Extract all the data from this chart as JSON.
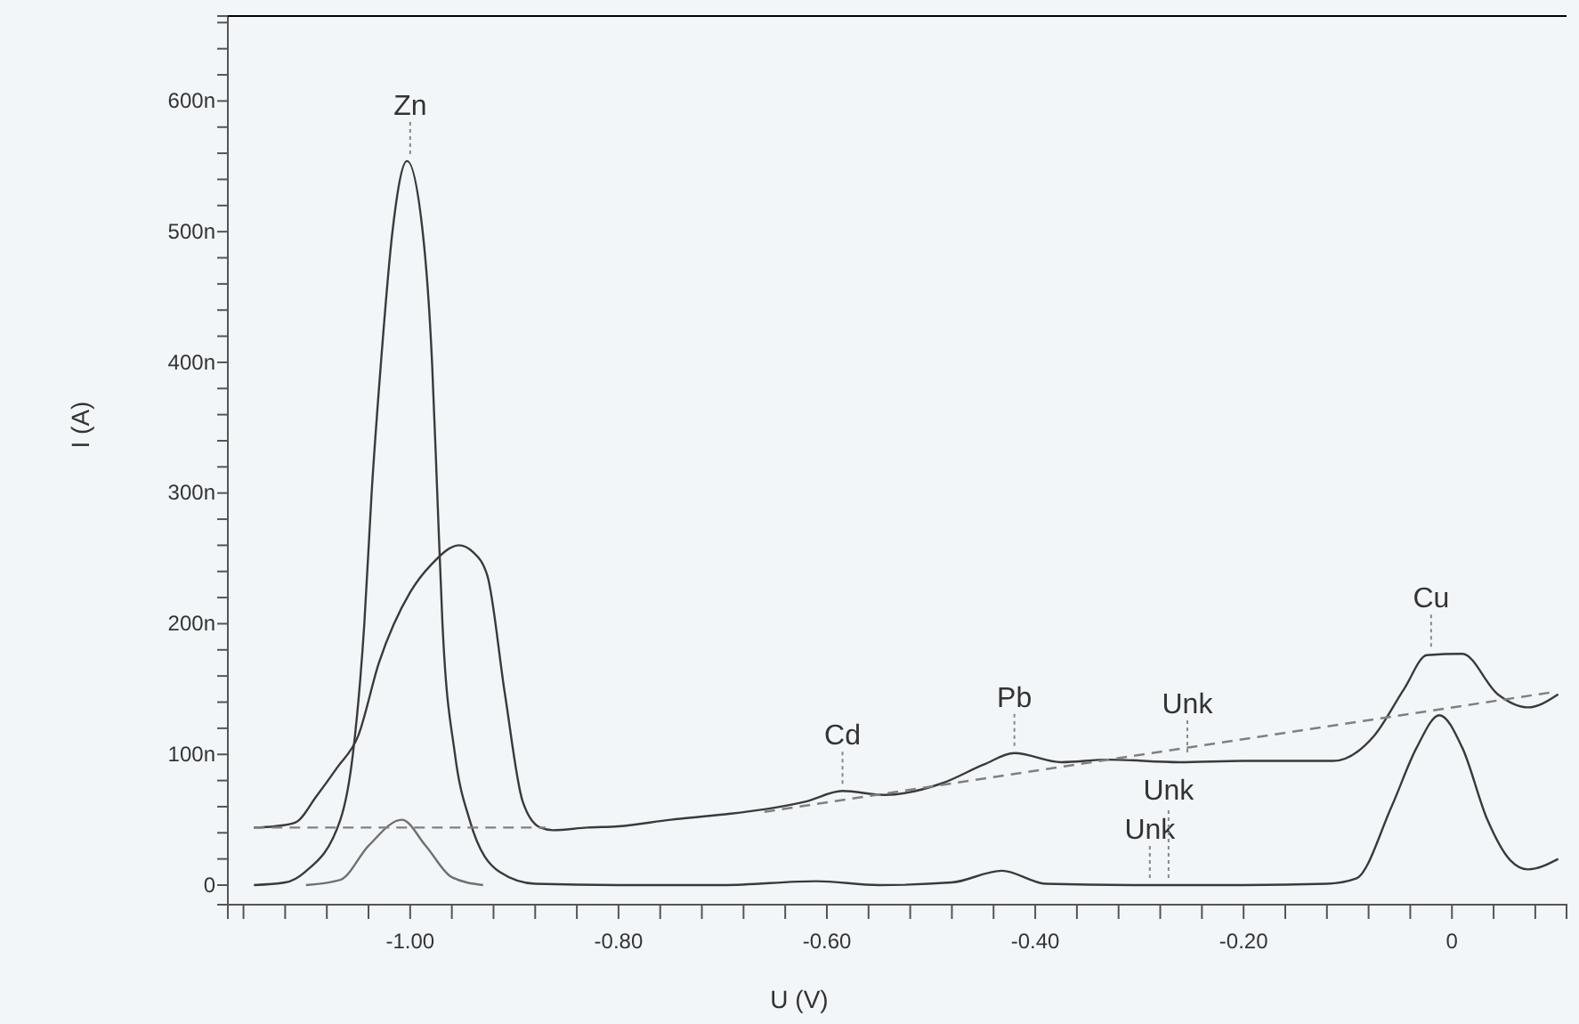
{
  "chart_data": {
    "type": "line",
    "xlabel": "U (V)",
    "ylabel": "I (A)",
    "xlim": [
      -1.175,
      0.11
    ],
    "ylim": [
      -15,
      665
    ],
    "xticks": [
      {
        "value": -1.16,
        "label": null
      },
      {
        "value": -1.12,
        "label": null
      },
      {
        "value": -1.08,
        "label": null
      },
      {
        "value": -1.04,
        "label": null
      },
      {
        "value": -1.0,
        "label": "-1.00"
      },
      {
        "value": -0.96,
        "label": null
      },
      {
        "value": -0.92,
        "label": null
      },
      {
        "value": -0.88,
        "label": null
      },
      {
        "value": -0.84,
        "label": null
      },
      {
        "value": -0.8,
        "label": "-0.80"
      },
      {
        "value": -0.76,
        "label": null
      },
      {
        "value": -0.72,
        "label": null
      },
      {
        "value": -0.68,
        "label": null
      },
      {
        "value": -0.64,
        "label": null
      },
      {
        "value": -0.6,
        "label": "-0.60"
      },
      {
        "value": -0.56,
        "label": null
      },
      {
        "value": -0.52,
        "label": null
      },
      {
        "value": -0.48,
        "label": null
      },
      {
        "value": -0.44,
        "label": null
      },
      {
        "value": -0.4,
        "label": "-0.40"
      },
      {
        "value": -0.36,
        "label": null
      },
      {
        "value": -0.32,
        "label": null
      },
      {
        "value": -0.28,
        "label": null
      },
      {
        "value": -0.24,
        "label": null
      },
      {
        "value": -0.2,
        "label": "-0.20"
      },
      {
        "value": -0.16,
        "label": null
      },
      {
        "value": -0.12,
        "label": null
      },
      {
        "value": -0.08,
        "label": null
      },
      {
        "value": -0.04,
        "label": null
      },
      {
        "value": 0,
        "label": "0"
      },
      {
        "value": 0.04,
        "label": null
      },
      {
        "value": 0.08,
        "label": null
      }
    ],
    "yticks": [
      0,
      {
        "value": 20,
        "label": null
      },
      {
        "value": 40,
        "label": null
      },
      {
        "value": 60,
        "label": null
      },
      {
        "value": 80,
        "label": null
      },
      {
        "value": 100,
        "label": "100n"
      },
      {
        "value": 120,
        "label": null
      },
      {
        "value": 140,
        "label": null
      },
      {
        "value": 160,
        "label": null
      },
      {
        "value": 180,
        "label": null
      },
      {
        "value": 200,
        "label": "200n"
      },
      {
        "value": 220,
        "label": null
      },
      {
        "value": 240,
        "label": null
      },
      {
        "value": 260,
        "label": null
      },
      {
        "value": 280,
        "label": null
      },
      {
        "value": 300,
        "label": "300n"
      },
      {
        "value": 320,
        "label": null
      },
      {
        "value": 340,
        "label": null
      },
      {
        "value": 360,
        "label": null
      },
      {
        "value": 380,
        "label": null
      },
      {
        "value": 400,
        "label": "400n"
      },
      {
        "value": 420,
        "label": null
      },
      {
        "value": 440,
        "label": null
      },
      {
        "value": 460,
        "label": null
      },
      {
        "value": 480,
        "label": null
      },
      {
        "value": 500,
        "label": "500n"
      },
      {
        "value": 520,
        "label": null
      },
      {
        "value": 540,
        "label": null
      },
      {
        "value": 560,
        "label": null
      },
      {
        "value": 580,
        "label": null
      },
      {
        "value": 600,
        "label": "600n"
      },
      {
        "value": 620,
        "label": null
      },
      {
        "value": 640,
        "label": null
      },
      {
        "value": 660,
        "label": null
      }
    ],
    "grid": false,
    "series": [
      {
        "color": "#3a3a3a",
        "x": [
          -1.15,
          -1.13,
          -1.11,
          -1.09,
          -1.07,
          -1.05,
          -1.03,
          -1.0,
          -0.98,
          -0.953,
          -0.94,
          -0.926,
          -0.909,
          -0.892,
          -0.875,
          -0.863,
          -0.83,
          -0.8,
          -0.75,
          -0.7,
          -0.66,
          -0.62,
          -0.585,
          -0.545,
          -0.489,
          -0.45,
          -0.42,
          -0.375,
          -0.33,
          -0.262,
          -0.2,
          -0.114,
          -0.075,
          -0.046,
          -0.024,
          0.01,
          0.044,
          0.073,
          0.102
        ],
        "values": [
          44,
          45,
          48,
          68,
          90,
          114,
          170,
          224,
          245,
          260,
          255,
          237,
          146,
          64,
          44,
          42,
          44,
          45,
          50,
          54,
          58,
          64,
          72,
          69,
          78,
          92,
          101,
          94,
          96,
          94,
          95,
          95,
          114,
          150,
          176,
          177,
          146,
          136,
          146
        ]
      },
      {
        "color": "#3a3a3a",
        "x": [
          -1.15,
          -1.12,
          -1.101,
          -1.067,
          -1.055,
          -1.044,
          -1.037,
          -1.028,
          -1.017,
          -1.003,
          -0.988,
          -0.979,
          -0.974,
          -0.969,
          -0.957,
          -0.943,
          -0.914,
          -0.88,
          -0.8,
          -0.7,
          -0.61,
          -0.55,
          -0.48,
          -0.432,
          -0.39,
          -0.3,
          -0.2,
          -0.12,
          -0.092,
          -0.058,
          -0.034,
          -0.012,
          0.01,
          0.034,
          0.056,
          0.073,
          0.102
        ],
        "values": [
          0,
          2,
          10,
          50,
          100,
          200,
          300,
          400,
          500,
          554,
          500,
          400,
          300,
          200,
          100,
          50,
          10,
          1,
          0,
          0,
          3,
          0,
          2,
          11,
          1,
          0,
          0,
          1,
          5,
          60,
          105,
          130,
          105,
          50,
          19,
          12,
          20
        ]
      },
      {
        "color": "#707070",
        "x": [
          -1.1,
          -1.067,
          -1.04,
          -1.008,
          -0.985,
          -0.96,
          -0.93
        ],
        "values": [
          0,
          4,
          30,
          50,
          30,
          6,
          0
        ]
      },
      {
        "color": "#808080",
        "line_style": "dashed",
        "x": [
          -1.15,
          -0.87,
          -0.865,
          -0.66,
          0.1
        ],
        "values": [
          44,
          44,
          null,
          56,
          148
        ]
      }
    ],
    "annotations": [
      {
        "text": "Zn",
        "x": -1.0,
        "y": 554
      },
      {
        "text": "Cd",
        "x": -0.585,
        "y": 72
      },
      {
        "text": "Pb",
        "x": -0.42,
        "y": 101
      },
      {
        "text": "Unk",
        "x": -0.254,
        "y": 96
      },
      {
        "text": "Cu",
        "x": -0.02,
        "y": 177
      },
      {
        "text": "Unk",
        "x": -0.29,
        "y": 0
      },
      {
        "text": "Unk",
        "x": -0.272,
        "y": 0
      }
    ]
  }
}
